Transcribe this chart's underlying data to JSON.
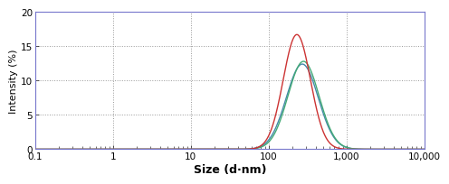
{
  "title": "",
  "xlabel": "Size (d·nm)",
  "ylabel": "Intensity (%)",
  "xlim_log": [
    0.1,
    10000
  ],
  "ylim": [
    0,
    20
  ],
  "yticks": [
    0,
    5,
    10,
    15,
    20
  ],
  "xtick_labels": [
    "0.1",
    "1",
    "10",
    "100",
    "1,000",
    "10,000"
  ],
  "xtick_values": [
    0.1,
    1,
    10,
    100,
    1000,
    10000
  ],
  "curve1_color": "#cc3333",
  "curve2_color": "#44aa77",
  "curve3_color": "#4488aa",
  "curve1_peak": 230,
  "curve1_height": 16.7,
  "curve1_sigma_log": 0.175,
  "curve2_peak": 280,
  "curve2_height": 12.8,
  "curve2_sigma_log": 0.2,
  "curve3_peak": 270,
  "curve3_height": 12.4,
  "curve3_sigma_log": 0.205,
  "background_color": "#ffffff",
  "grid_color": "#999999",
  "spine_color": "#7777cc",
  "tick_color": "#333333"
}
